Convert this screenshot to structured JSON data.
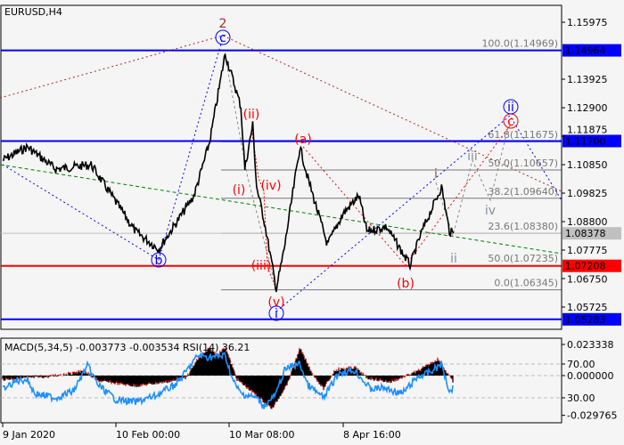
{
  "chart_data": {
    "type": "candlestick",
    "title": "EURUSD,H4",
    "price_axis": {
      "ticks": [
        "1.15975",
        "1.13925",
        "1.12900",
        "1.11875",
        "1.10850",
        "1.09825",
        "1.08800",
        "1.07775",
        "1.06750",
        "1.05725"
      ],
      "range": [
        1.049,
        1.166
      ]
    },
    "x_ticks": [
      {
        "label": "9 Jan 2020",
        "date": "2020-01-09"
      },
      {
        "label": "10 Feb 00:00",
        "date": "2020-02-10"
      },
      {
        "label": "10 Mar 08:00",
        "date": "2020-03-10"
      },
      {
        "label": "8 Apr 16:00",
        "date": "2020-04-08"
      }
    ],
    "price_path": [
      [
        "2020-01-09",
        1.1101
      ],
      [
        "2020-01-16",
        1.1149
      ],
      [
        "2020-01-24",
        1.1069
      ],
      [
        "2020-02-03",
        1.1085
      ],
      [
        "2020-02-15",
        1.0845
      ],
      [
        "2020-02-21",
        1.0781
      ],
      [
        "2020-03-01",
        1.0973
      ],
      [
        "2020-03-05",
        1.1165
      ],
      [
        "2020-03-09",
        1.1485
      ],
      [
        "2020-03-13",
        1.1293
      ],
      [
        "2020-03-14",
        1.1069
      ],
      [
        "2020-03-16",
        1.1229
      ],
      [
        "2020-03-17",
        1.1005
      ],
      [
        "2020-03-19",
        1.0877
      ],
      [
        "2020-03-22",
        1.0637
      ],
      [
        "2020-03-24",
        1.0781
      ],
      [
        "2020-03-28",
        1.1149
      ],
      [
        "2020-03-30",
        1.1037
      ],
      [
        "2020-04-04",
        1.0797
      ],
      [
        "2020-04-08",
        1.0909
      ],
      [
        "2020-04-12",
        1.0973
      ],
      [
        "2020-04-14",
        1.0845
      ],
      [
        "2020-04-19",
        1.0861
      ],
      [
        "2020-04-25",
        1.0723
      ],
      [
        "2020-04-28",
        1.0845
      ],
      [
        "2020-05-03",
        1.1005
      ],
      [
        "2020-05-05",
        1.0845
      ],
      [
        "2020-05-06",
        1.0838
      ]
    ],
    "levels": [
      {
        "price": 1.14964,
        "label": "1.14964",
        "color": "#0000ff"
      },
      {
        "price": 1.117,
        "label": "1.11700",
        "color": "#0000ff"
      },
      {
        "price": 1.08378,
        "label": "1.08378",
        "color": "#c0c0c0"
      },
      {
        "price": 1.07208,
        "label": "1.07208",
        "color": "#ff0000"
      },
      {
        "price": 1.05283,
        "label": "1.05283",
        "color": "#0000ff"
      }
    ],
    "fibonacci": [
      {
        "label": "100.0(1.14969)",
        "price": 1.14969
      },
      {
        "label": "61.8(1.11675)",
        "price": 1.11675
      },
      {
        "label": "50.0(1.10657)",
        "price": 1.10657
      },
      {
        "label": "38.2(1.09640)",
        "price": 1.0964
      },
      {
        "label": "23.6(1.08380)",
        "price": 1.0838
      },
      {
        "label": "0.0(1.06345)",
        "price": 1.06345
      }
    ],
    "fib_extra": {
      "label": "50.0(1.07235)",
      "price": 1.07235,
      "color": "#400080"
    },
    "wave_labels": [
      {
        "text": "2",
        "color": "#a52a2a",
        "circled": false
      },
      {
        "text": "c",
        "color": "#0000ff",
        "circled": true
      },
      {
        "text": "b",
        "color": "#0000ff",
        "circled": true
      },
      {
        "text": "(ii)",
        "color": "#ff0000",
        "circled": false
      },
      {
        "text": "(i)",
        "color": "#ff0000",
        "circled": false
      },
      {
        "text": "(iv)",
        "color": "#ff0000",
        "circled": false
      },
      {
        "text": "(iii)",
        "color": "#ff0000",
        "circled": false
      },
      {
        "text": "(v)",
        "color": "#ff0000",
        "circled": false
      },
      {
        "text": "i",
        "color": "#0000ff",
        "circled": true
      },
      {
        "text": "(a)",
        "color": "#ff0000",
        "circled": false
      },
      {
        "text": "(b)",
        "color": "#ff0000",
        "circled": false
      },
      {
        "text": "c",
        "color": "#ff0000",
        "circled": true
      },
      {
        "text": "ii",
        "color": "#0000ff",
        "circled": true
      },
      {
        "text": "iii",
        "color": "#8090a0",
        "circled": false
      },
      {
        "text": "i",
        "color": "#a05050",
        "circled": false
      },
      {
        "text": "iv",
        "color": "#8090a0",
        "circled": false
      },
      {
        "text": "ii",
        "color": "#8090a0",
        "circled": false
      }
    ],
    "indicator": {
      "title": "MACD(5,34,5) -0.003773 -0.003534 RSI(14) 36.21",
      "macd_axis": [
        "0.023338",
        "0.000000",
        "-0.029765"
      ],
      "rsi_axis": [
        "70.00",
        "30.00"
      ],
      "macd_range": [
        -0.029765,
        0.023338
      ],
      "histogram": [
        [
          "2020-01-09",
          -0.003
        ],
        [
          "2020-01-15",
          -0.002
        ],
        [
          "2020-01-22",
          -0.001
        ],
        [
          "2020-02-01",
          0.003
        ],
        [
          "2020-02-05",
          -0.004
        ],
        [
          "2020-02-15",
          -0.008
        ],
        [
          "2020-02-25",
          -0.004
        ],
        [
          "2020-02-28",
          -0.002
        ],
        [
          "2020-03-02",
          0.012
        ],
        [
          "2020-03-05",
          0.02
        ],
        [
          "2020-03-07",
          0.015
        ],
        [
          "2020-03-09",
          0.021
        ],
        [
          "2020-03-12",
          -0.003
        ],
        [
          "2020-03-17",
          -0.015
        ],
        [
          "2020-03-21",
          -0.025
        ],
        [
          "2020-03-25",
          -0.005
        ],
        [
          "2020-03-28",
          0.02
        ],
        [
          "2020-03-31",
          0.002
        ],
        [
          "2020-04-03",
          -0.01
        ],
        [
          "2020-04-06",
          0.004
        ],
        [
          "2020-04-11",
          0.006
        ],
        [
          "2020-04-14",
          -0.002
        ],
        [
          "2020-04-20",
          -0.005
        ],
        [
          "2020-04-27",
          0.003
        ],
        [
          "2020-05-02",
          0.012
        ],
        [
          "2020-05-06",
          -0.005
        ]
      ],
      "rsi": [
        [
          "2020-01-09",
          40
        ],
        [
          "2020-01-13",
          50
        ],
        [
          "2020-01-16",
          52
        ],
        [
          "2020-01-18",
          35
        ],
        [
          "2020-01-24",
          30
        ],
        [
          "2020-01-29",
          38
        ],
        [
          "2020-02-02",
          68
        ],
        [
          "2020-02-05",
          45
        ],
        [
          "2020-02-10",
          28
        ],
        [
          "2020-02-15",
          25
        ],
        [
          "2020-02-20",
          32
        ],
        [
          "2020-02-25",
          45
        ],
        [
          "2020-02-27",
          55
        ],
        [
          "2020-03-02",
          80
        ],
        [
          "2020-03-05",
          78
        ],
        [
          "2020-03-09",
          80
        ],
        [
          "2020-03-11",
          50
        ],
        [
          "2020-03-13",
          35
        ],
        [
          "2020-03-17",
          30
        ],
        [
          "2020-03-19",
          20
        ],
        [
          "2020-03-22",
          35
        ],
        [
          "2020-03-24",
          62
        ],
        [
          "2020-03-26",
          68
        ],
        [
          "2020-03-28",
          70
        ],
        [
          "2020-03-30",
          45
        ],
        [
          "2020-04-03",
          30
        ],
        [
          "2020-04-07",
          60
        ],
        [
          "2020-04-11",
          62
        ],
        [
          "2020-04-15",
          40
        ],
        [
          "2020-04-18",
          42
        ],
        [
          "2020-04-23",
          35
        ],
        [
          "2020-04-27",
          55
        ],
        [
          "2020-04-30",
          60
        ],
        [
          "2020-05-03",
          70
        ],
        [
          "2020-05-05",
          38
        ],
        [
          "2020-05-06",
          42
        ]
      ]
    }
  }
}
